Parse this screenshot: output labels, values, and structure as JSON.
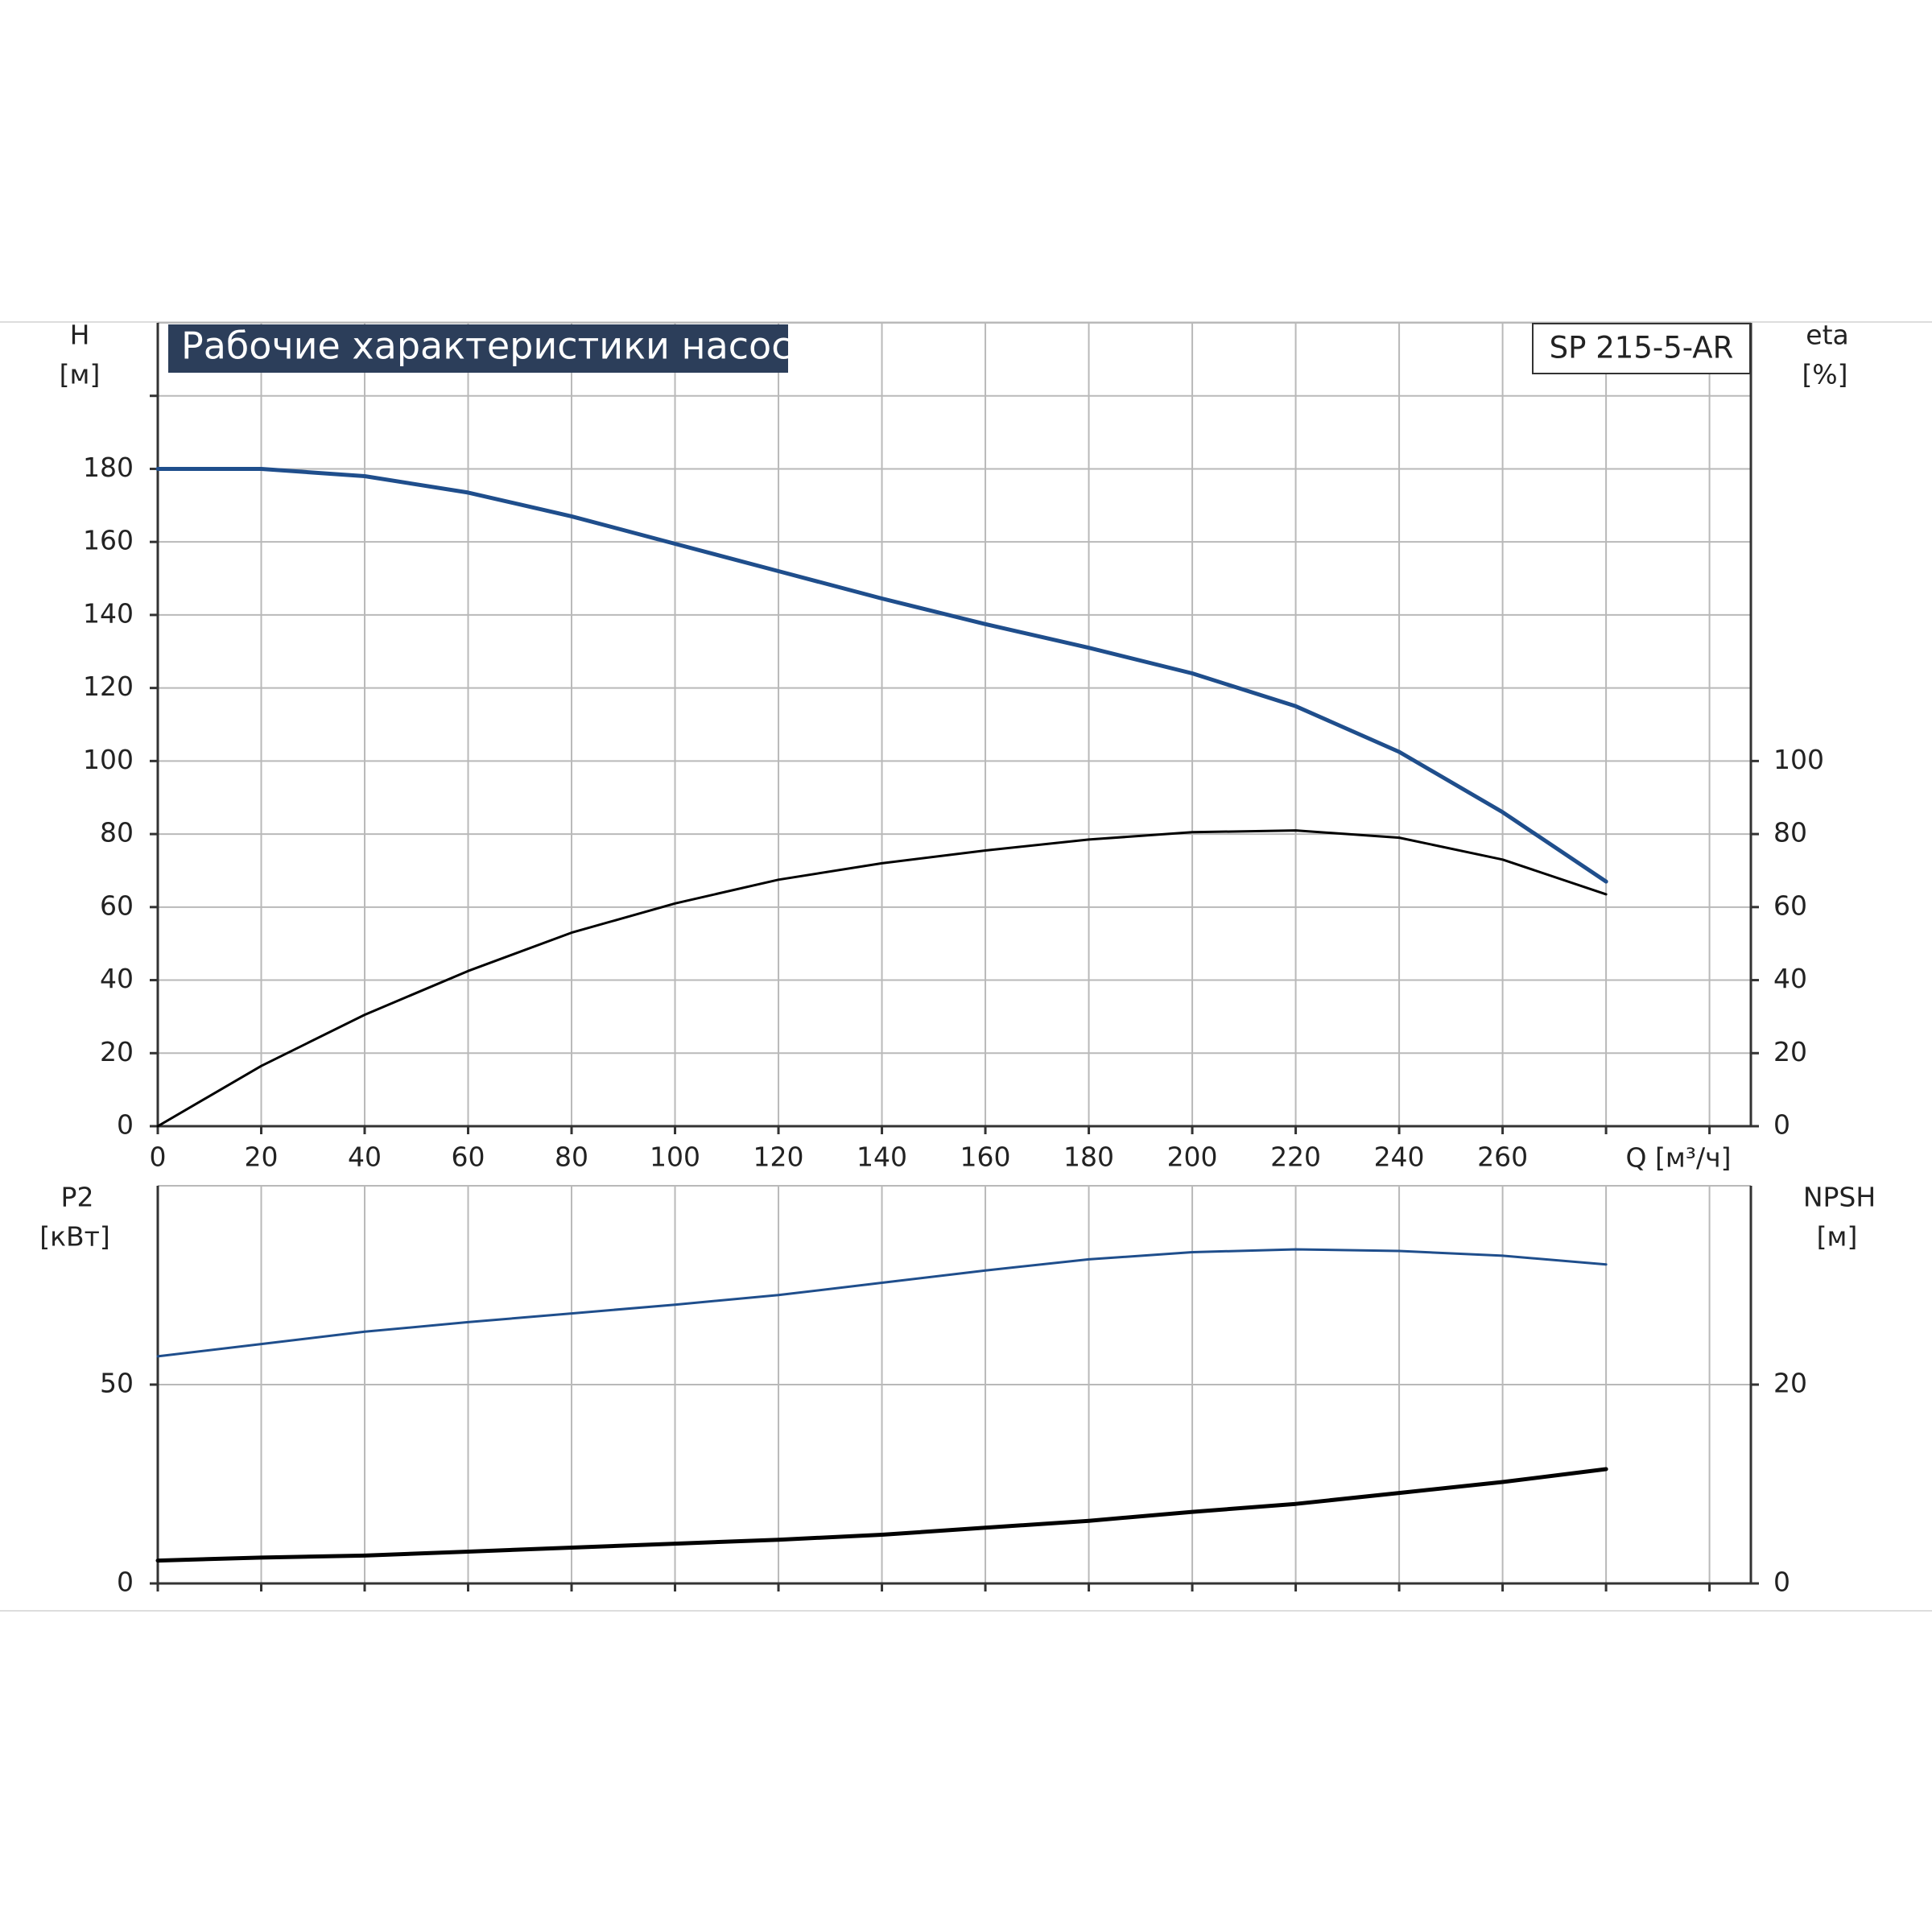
{
  "chart_data": [
    {
      "type": "line",
      "title": "Рабочие характеристики насоса",
      "model": "SP 215-5-AR",
      "ylabel": "H",
      "yunit": "[м]",
      "y2label": "eta",
      "y2unit": "[%]",
      "xlabel": "Q [м³/ч]",
      "x": [
        0,
        20,
        40,
        60,
        80,
        100,
        120,
        140,
        160,
        180,
        200,
        220,
        240,
        260,
        280
      ],
      "series": [
        {
          "color": "#1f4e8c",
          "values": [
            180,
            180,
            178,
            173.5,
            167,
            159.5,
            152,
            144.5,
            137.5,
            131,
            124,
            115,
            102.5,
            86,
            67
          ]
        },
        {
          "color": "#000000",
          "axis": "y2",
          "values": [
            0,
            16.5,
            30.5,
            42.5,
            53,
            61,
            67.5,
            72,
            75.5,
            78.5,
            80.5,
            81,
            79,
            73,
            63.5
          ]
        }
      ],
      "xlim": [
        0,
        308
      ],
      "xticks": [
        0,
        20,
        40,
        60,
        80,
        100,
        120,
        140,
        160,
        180,
        200,
        220,
        240,
        260,
        {
          "value": 280,
          "label": null
        },
        {
          "value": 300,
          "label": null
        }
      ],
      "ylim": [
        0,
        220
      ],
      "yticks": [
        0,
        20,
        40,
        60,
        80,
        100,
        120,
        140,
        160,
        180,
        {
          "value": 200,
          "label": null
        }
      ],
      "y2lim": [
        0,
        220
      ],
      "y2ticks": [
        0,
        20,
        40,
        60,
        80,
        100
      ],
      "grid": true
    },
    {
      "type": "line",
      "ylabel": "P2",
      "yunit": "[кВт]",
      "y2label": "NPSH",
      "y2unit": "[м]",
      "x": [
        0,
        20,
        40,
        60,
        80,
        100,
        120,
        140,
        160,
        180,
        200,
        220,
        240,
        260,
        280
      ],
      "series": [
        {
          "color": "#1f4e8c",
          "values": [
            57.1,
            60.2,
            63.3,
            65.7,
            67.9,
            70.1,
            72.5,
            75.6,
            78.7,
            81.5,
            83.3,
            84,
            83.6,
            82.4,
            80.2
          ]
        },
        {
          "color": "#000000",
          "axis": "y2",
          "values": [
            2.3,
            2.6,
            2.8,
            3.2,
            3.6,
            4.0,
            4.4,
            4.9,
            5.6,
            6.3,
            7.2,
            8.0,
            9.1,
            10.2,
            11.5
          ]
        }
      ],
      "xlim": [
        0,
        308
      ],
      "xticks": [
        0,
        20,
        40,
        60,
        80,
        100,
        120,
        140,
        160,
        180,
        200,
        220,
        240,
        260,
        280,
        300
      ],
      "xtick_labels": false,
      "ylim": [
        0,
        100
      ],
      "yticks": [
        0,
        50
      ],
      "y2lim": [
        0,
        40
      ],
      "y2ticks": [
        0,
        20
      ],
      "grid": true
    }
  ]
}
